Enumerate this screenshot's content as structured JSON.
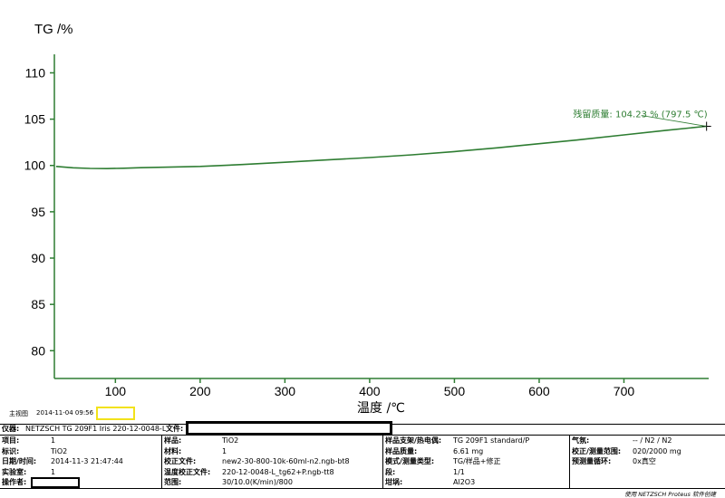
{
  "chart_data": {
    "type": "line",
    "ylabel": "TG /%",
    "xlabel": "温度 /℃",
    "xlim": [
      28,
      800
    ],
    "ylim": [
      77,
      112
    ],
    "xticks": [
      100,
      200,
      300,
      400,
      500,
      600,
      700
    ],
    "yticks": [
      80,
      85,
      90,
      95,
      100,
      105,
      110
    ],
    "series": [
      {
        "color": "#2e7d32",
        "x": [
          30,
          50,
          70,
          90,
          110,
          130,
          150,
          200,
          250,
          300,
          350,
          400,
          450,
          500,
          550,
          600,
          650,
          700,
          750,
          797
        ],
        "y": [
          99.9,
          99.75,
          99.68,
          99.66,
          99.7,
          99.76,
          99.8,
          99.9,
          100.1,
          100.35,
          100.6,
          100.85,
          101.15,
          101.5,
          101.9,
          102.35,
          102.8,
          103.3,
          103.8,
          104.23
        ]
      }
    ],
    "annotation": {
      "text": "残留质量: 104.23 % (797.5 ℃)",
      "x": 797.5,
      "y": 104.23,
      "color": "#2e7d32"
    }
  },
  "header_info": {
    "mainview": "主视图",
    "timestamp": "2014-11-04 09:56"
  },
  "footer": {
    "instrument_label": "仪器:",
    "instrument_value": "NETZSCH TG 209F1 Iris 220-12-0048-L",
    "file_label": "文件:",
    "col1": [
      {
        "label": "项目:",
        "value": "1"
      },
      {
        "label": "标识:",
        "value": "TiO2"
      },
      {
        "label": "日期/时间:",
        "value": "2014-11-3 21:47:44"
      },
      {
        "label": "实验室:",
        "value": "1"
      },
      {
        "label": "操作者:",
        "value": ""
      }
    ],
    "col2": [
      {
        "label": "样品:",
        "value": "TiO2"
      },
      {
        "label": "材料:",
        "value": "1"
      },
      {
        "label": "校正文件:",
        "value": "new2-30-800-10k-60ml-n2.ngb-bt8"
      },
      {
        "label": "温度校正文件:",
        "value": "220-12-0048-L_tg62+P.ngb-tt8"
      },
      {
        "label": "范围:",
        "value": "30/10.0(K/min)/800"
      }
    ],
    "col3": [
      {
        "label": "样品支架/热电偶:",
        "value": "TG 209F1 standard/P"
      },
      {
        "label": "样品质量:",
        "value": "6.61 mg"
      },
      {
        "label": "模式/测量类型:",
        "value": "TG/样品+修正"
      },
      {
        "label": "段:",
        "value": "1/1"
      },
      {
        "label": "坩埚:",
        "value": "Al2O3"
      }
    ],
    "col4": [
      {
        "label": "气氛:",
        "value": "-- / N2 / N2"
      },
      {
        "label": "校正/测量范围:",
        "value": "020/2000 mg"
      },
      {
        "label": "预测量循环:",
        "value": "0x真空"
      }
    ],
    "credit": "使用 NETZSCH Proteus 软件创建"
  }
}
